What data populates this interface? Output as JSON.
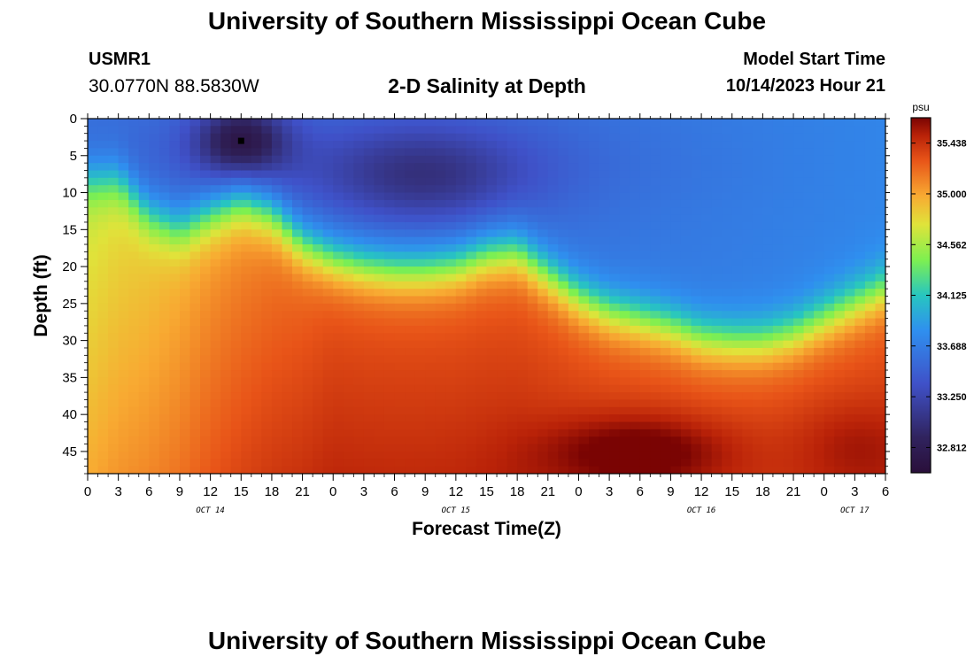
{
  "header": {
    "title": "University of Southern Mississippi Ocean Cube",
    "station": "USMR1",
    "coordinates": "30.0770N  88.5830W",
    "subtitle": "2-D Salinity at Depth",
    "model_start_label": "Model Start Time",
    "model_start_value": "10/14/2023 Hour 21"
  },
  "footer": {
    "title": "University of Southern Mississippi Ocean Cube"
  },
  "colors": {
    "low": "#2a0f3a",
    "mid_low": "#3f51c8",
    "mid": "#36d47a",
    "mid_high": "#f8aa32",
    "high": "#7a0403"
  },
  "chart_data": {
    "type": "heatmap",
    "title": "2-D Salinity at Depth",
    "xlabel": "Forecast Time(Z)",
    "ylabel": "Depth (ft)",
    "x_hours_range": [
      0,
      78
    ],
    "x_tick_labels": [
      "0",
      "3",
      "6",
      "9",
      "12",
      "15",
      "18",
      "21",
      "0",
      "3",
      "6",
      "9",
      "12",
      "15",
      "18",
      "21",
      "0",
      "3",
      "6",
      "9",
      "12",
      "15",
      "18",
      "21",
      "0",
      "3",
      "6"
    ],
    "x_tick_step_hours": 3,
    "date_labels": [
      {
        "label": "OCT 14",
        "hour": 12
      },
      {
        "label": "OCT 15",
        "hour": 36
      },
      {
        "label": "OCT 16",
        "hour": 60
      },
      {
        "label": "OCT 17",
        "hour": 75
      }
    ],
    "y_range_ft": [
      0,
      48
    ],
    "y_ticks": [
      0,
      5,
      10,
      15,
      20,
      25,
      30,
      35,
      40,
      45
    ],
    "colorbar": {
      "unit": "psu",
      "min": 32.594,
      "max": 35.6565,
      "ticks": [
        "35.438",
        "35.000",
        "34.562",
        "34.125",
        "33.688",
        "33.250",
        "32.812"
      ]
    },
    "marker": {
      "hour": 15,
      "depth_ft": 3
    },
    "isoline_34_1_depth_by_hour": [
      [
        0,
        8
      ],
      [
        3,
        8
      ],
      [
        6,
        13
      ],
      [
        9,
        15
      ],
      [
        12,
        13
      ],
      [
        15,
        11.5
      ],
      [
        18,
        13
      ],
      [
        21,
        17
      ],
      [
        24,
        19
      ],
      [
        27,
        20
      ],
      [
        30,
        20.5
      ],
      [
        33,
        20.5
      ],
      [
        36,
        20
      ],
      [
        39,
        18.5
      ],
      [
        42,
        18
      ],
      [
        45,
        21
      ],
      [
        48,
        24
      ],
      [
        51,
        26
      ],
      [
        54,
        27
      ],
      [
        57,
        28
      ],
      [
        60,
        29.5
      ],
      [
        63,
        30
      ],
      [
        66,
        30
      ],
      [
        69,
        29
      ],
      [
        72,
        27
      ],
      [
        75,
        25
      ],
      [
        78,
        23
      ]
    ],
    "salinity_samples": [
      {
        "hour": 15,
        "depth_ft": 3,
        "psu": 32.81
      },
      {
        "hour": 18,
        "depth_ft": 9,
        "psu": 33.4
      },
      {
        "hour": 60,
        "depth_ft": 5,
        "psu": 33.55
      },
      {
        "hour": 70,
        "depth_ft": 12,
        "psu": 33.75
      },
      {
        "hour": 3,
        "depth_ft": 30,
        "psu": 34.92
      },
      {
        "hour": 36,
        "depth_ft": 35,
        "psu": 35.25
      },
      {
        "hour": 54,
        "depth_ft": 45,
        "psu": 35.6
      },
      {
        "hour": 75,
        "depth_ft": 45,
        "psu": 35.45
      }
    ]
  }
}
